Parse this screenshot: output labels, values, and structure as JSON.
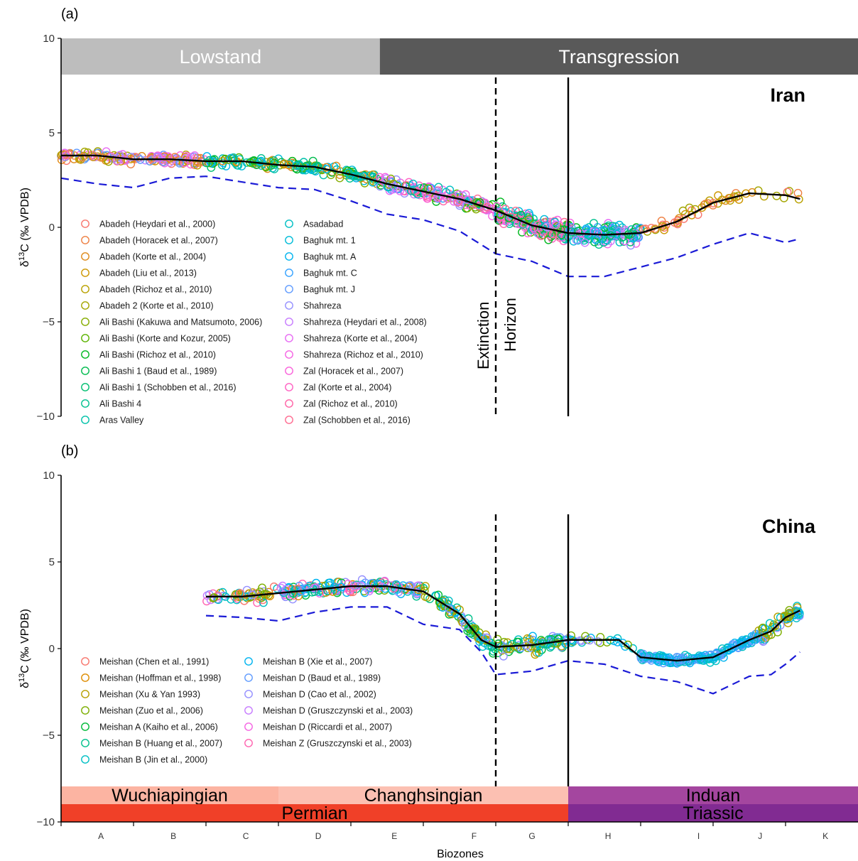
{
  "chart_data": [
    {
      "panel_label": "(a)",
      "type": "scatter",
      "region_label": "Iran",
      "ylabel": "δ13C (‰ VPDB)",
      "ylabel_parts": [
        "δ",
        "13",
        "C (‰ VPDB)"
      ],
      "ylim": [
        -10,
        10
      ],
      "yticks": [
        "10",
        "5",
        "0",
        "−5",
        "−10"
      ],
      "xlim": [
        0,
        11
      ],
      "bands": [
        {
          "label": "Lowstand",
          "x0": 0,
          "x1": 4.4,
          "color": "#bdbdbd"
        },
        {
          "label": "Transgression",
          "x0": 4.4,
          "x1": 11,
          "color": "#595959"
        }
      ],
      "vlines": [
        {
          "x": 6.0,
          "style": "dashed",
          "label_parts": [
            "Extinction",
            "Horizon"
          ]
        },
        {
          "x": 7.0,
          "style": "solid"
        }
      ],
      "trend": {
        "x": [
          0,
          0.5,
          1,
          1.5,
          2,
          2.5,
          3,
          3.5,
          4,
          4.5,
          5,
          5.5,
          6,
          6.5,
          7,
          7.5,
          8,
          8.5,
          9,
          9.5,
          10,
          10.2
        ],
        "y": [
          3.8,
          3.8,
          3.6,
          3.6,
          3.5,
          3.5,
          3.3,
          3.2,
          2.8,
          2.3,
          1.9,
          1.5,
          0.9,
          0.1,
          -0.3,
          -0.4,
          -0.3,
          0.3,
          1.3,
          1.8,
          1.7,
          1.5
        ]
      },
      "lower_bound": {
        "x": [
          0,
          0.5,
          1,
          1.5,
          2,
          2.5,
          3,
          3.5,
          4,
          4.5,
          5,
          5.5,
          6,
          6.5,
          7,
          7.5,
          8,
          8.5,
          9,
          9.5,
          10,
          10.2
        ],
        "y": [
          2.6,
          2.3,
          2.1,
          2.6,
          2.7,
          2.4,
          2.1,
          2.0,
          1.4,
          0.7,
          0.4,
          -0.2,
          -1.4,
          -1.8,
          -2.6,
          -2.6,
          -2.1,
          -1.6,
          -0.9,
          -0.3,
          -0.8,
          -0.6
        ]
      },
      "series": [
        {
          "name": "Abadeh (Heydari et al., 2000)",
          "color": "#F8766D"
        },
        {
          "name": "Abadeh (Horacek et al., 2007)",
          "color": "#EE8043"
        },
        {
          "name": "Abadeh (Korte et al., 2004)",
          "color": "#DF8A1A"
        },
        {
          "name": "Abadeh (Liu et al., 2013)",
          "color": "#CD9600"
        },
        {
          "name": "Abadeh (Richoz et al., 2010)",
          "color": "#B9A100"
        },
        {
          "name": "Abadeh 2 (Korte et al., 2010)",
          "color": "#A3A500"
        },
        {
          "name": "Ali Bashi (Kakuwa and Matsumoto, 2006)",
          "color": "#86AC00"
        },
        {
          "name": "Ali Bashi (Korte and Kozur, 2005)",
          "color": "#5BB300"
        },
        {
          "name": "Ali Bashi (Richoz et al., 2010)",
          "color": "#00B81F"
        },
        {
          "name": "Ali Bashi 1 (Baud et al., 1989)",
          "color": "#00BB4E"
        },
        {
          "name": "Ali Bashi 1 (Schobben et al., 2016)",
          "color": "#00BE70"
        },
        {
          "name": "Ali Bashi 4",
          "color": "#00C08E"
        },
        {
          "name": "Aras Valley",
          "color": "#00C1A9"
        },
        {
          "name": "Asadabad",
          "color": "#00BFC4"
        },
        {
          "name": "Baghuk mt. 1",
          "color": "#00BCD8"
        },
        {
          "name": "Baghuk mt. A",
          "color": "#00B4EF"
        },
        {
          "name": "Baghuk mt. C",
          "color": "#35A2FF"
        },
        {
          "name": "Baghuk mt. J",
          "color": "#619CFF"
        },
        {
          "name": "Shahreza",
          "color": "#9590FF"
        },
        {
          "name": "Shahreza (Heydari et al., 2008)",
          "color": "#C77CFF"
        },
        {
          "name": "Shahreza (Korte et al., 2004)",
          "color": "#E76BF3"
        },
        {
          "name": "Shahreza (Richoz et al., 2010)",
          "color": "#F564E3"
        },
        {
          "name": "Zal (Horacek et al., 2007)",
          "color": "#FA62DB"
        },
        {
          "name": "Zal (Korte et al., 2004)",
          "color": "#FF61C3"
        },
        {
          "name": "Zal (Richoz et al., 2010)",
          "color": "#FF63A6"
        },
        {
          "name": "Zal (Schobben et al., 2016)",
          "color": "#FF6C91"
        }
      ]
    },
    {
      "panel_label": "(b)",
      "type": "scatter",
      "region_label": "China",
      "ylabel": "δ13C (‰ VPDB)",
      "ylabel_parts": [
        "δ",
        "13",
        "C (‰ VPDB)"
      ],
      "ylim": [
        -10,
        10
      ],
      "yticks": [
        "10",
        "5",
        "0",
        "−5",
        "−10"
      ],
      "xlim": [
        0,
        11
      ],
      "xlabel": "Biozones",
      "xticks": [
        "A",
        "B",
        "C",
        "D",
        "E",
        "F",
        "G",
        "H",
        "I",
        "J",
        "K"
      ],
      "xtick_pos": [
        0.55,
        1.55,
        2.55,
        3.55,
        4.6,
        5.7,
        6.5,
        7.55,
        8.8,
        9.65,
        10.55
      ],
      "stages": [
        {
          "label": "Wuchiapingian",
          "x0": 0,
          "x1": 3.0,
          "color": "#FCB4A2"
        },
        {
          "label": "Changhsingian",
          "x0": 3.0,
          "x1": 7.0,
          "color": "#FCC0B2"
        },
        {
          "label": "Induan",
          "x0": 7.0,
          "x1": 11,
          "color": "#A4469F"
        }
      ],
      "systems": [
        {
          "label": "Permian",
          "x0": 0,
          "x1": 7.0,
          "color": "#F04028"
        },
        {
          "label": "Triassic",
          "x0": 7.0,
          "x1": 11,
          "color": "#812B92"
        }
      ],
      "vlines": [
        {
          "x": 6.0,
          "style": "dashed"
        },
        {
          "x": 7.0,
          "style": "solid"
        }
      ],
      "trend": {
        "x": [
          2.0,
          2.5,
          3,
          3.5,
          4,
          4.5,
          5,
          5.5,
          5.8,
          6,
          6.5,
          7,
          7.5,
          7.7,
          8,
          8.5,
          9,
          9.5,
          9.8,
          10,
          10.2
        ],
        "y": [
          3.0,
          3.0,
          3.2,
          3.4,
          3.6,
          3.6,
          3.3,
          2.0,
          0.5,
          0.1,
          0.2,
          0.5,
          0.5,
          0.5,
          -0.5,
          -0.7,
          -0.5,
          0.5,
          1.0,
          1.8,
          2.2
        ]
      },
      "lower_bound": {
        "x": [
          2.0,
          2.5,
          3,
          3.5,
          4,
          4.5,
          5,
          5.5,
          5.8,
          6,
          6.5,
          7,
          7.5,
          8,
          8.5,
          9,
          9.5,
          9.8,
          10,
          10.2
        ],
        "y": [
          1.9,
          1.8,
          1.6,
          2.1,
          2.4,
          2.4,
          1.4,
          1.1,
          -0.2,
          -1.5,
          -1.3,
          -0.7,
          -0.9,
          -1.6,
          -1.9,
          -2.6,
          -1.6,
          -1.5,
          -0.9,
          -0.2
        ]
      },
      "series": [
        {
          "name": "Meishan (Chen et al., 1991)",
          "color": "#F8766D"
        },
        {
          "name": "Meishan (Hoffman et al., 1998)",
          "color": "#DE8C00"
        },
        {
          "name": "Meishan (Xu & Yan 1993)",
          "color": "#B79F00"
        },
        {
          "name": "Meishan (Zuo  et al., 2006)",
          "color": "#7CAE00"
        },
        {
          "name": "Meishan A (Kaiho et al., 2006)",
          "color": "#00BA38"
        },
        {
          "name": "Meishan B (Huang et al., 2007)",
          "color": "#00C08B"
        },
        {
          "name": "Meishan B (Jin et al., 2000)",
          "color": "#00BFC4"
        },
        {
          "name": "Meishan B (Xie et al., 2007)",
          "color": "#00B4F0"
        },
        {
          "name": "Meishan D (Baud et al., 1989)",
          "color": "#619CFF"
        },
        {
          "name": "Meishan D (Cao et al., 2002)",
          "color": "#9590FF"
        },
        {
          "name": "Meishan D (Gruszczynski et al., 2003)",
          "color": "#C77CFF"
        },
        {
          "name": "Meishan D (Riccardi et al., 2007)",
          "color": "#F564E3"
        },
        {
          "name": "Meishan Z (Gruszczynski et al., 2003)",
          "color": "#FF64B0"
        }
      ]
    }
  ]
}
